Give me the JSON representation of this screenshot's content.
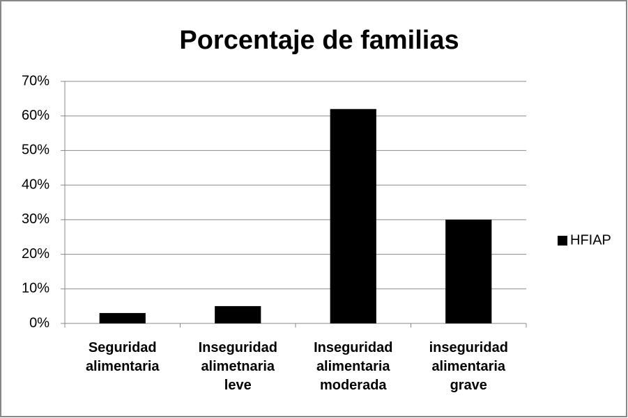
{
  "chart_data": {
    "type": "bar",
    "title": "Porcentaje de familias",
    "categories": [
      "Seguridad alimentaria",
      "Inseguridad alimetnaria leve",
      "Inseguridad alimentaria moderada",
      "inseguridad alimentaria grave"
    ],
    "series": [
      {
        "name": "HFIAP",
        "color": "#000000",
        "values": [
          3,
          5,
          62,
          30
        ]
      }
    ],
    "ylim": [
      0,
      70
    ],
    "yticks": [
      {
        "value": 0,
        "label": "0%"
      },
      {
        "value": 10,
        "label": "10%"
      },
      {
        "value": 20,
        "label": "20%"
      },
      {
        "value": 30,
        "label": "30%"
      },
      {
        "value": 40,
        "label": "40%"
      },
      {
        "value": 50,
        "label": "50%"
      },
      {
        "value": 60,
        "label": "60%"
      },
      {
        "value": 70,
        "label": "70%"
      }
    ],
    "grid": true,
    "legend": "right"
  }
}
